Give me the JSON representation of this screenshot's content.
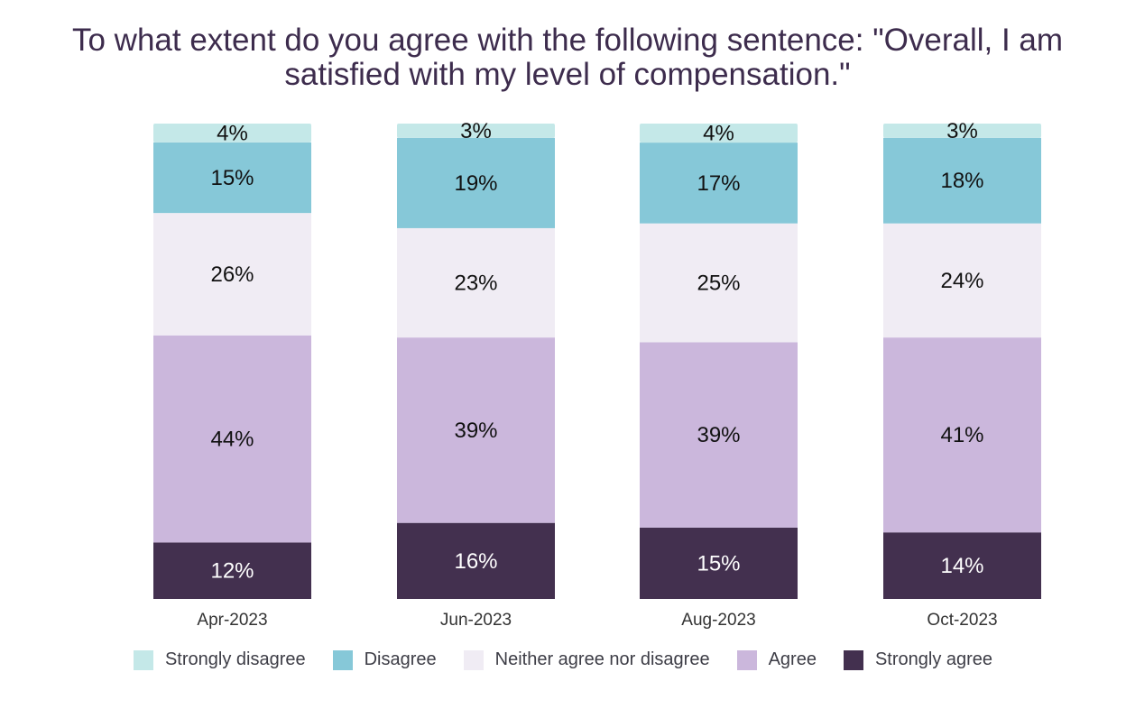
{
  "chart_data": {
    "type": "bar",
    "stacked": true,
    "title": "To what extent do you agree with the following sentence: \"Overall, I am satisfied with my level of compensation.\"",
    "categories": [
      "Apr-2023",
      "Jun-2023",
      "Aug-2023",
      "Oct-2023"
    ],
    "series": [
      {
        "name": "Strongly agree",
        "color": "#43304f",
        "values": [
          12,
          16,
          15,
          14
        ]
      },
      {
        "name": "Agree",
        "color": "#cbb7dc",
        "values": [
          44,
          39,
          39,
          41
        ]
      },
      {
        "name": "Neither agree nor disagree",
        "color": "#f0ecf4",
        "values": [
          26,
          23,
          25,
          24
        ]
      },
      {
        "name": "Disagree",
        "color": "#86c8d8",
        "values": [
          15,
          19,
          17,
          18
        ]
      },
      {
        "name": "Strongly disagree",
        "color": "#c4e8e8",
        "values": [
          4,
          3,
          4,
          3
        ]
      }
    ],
    "value_suffix": "%",
    "legend_position": "bottom",
    "grid": false
  }
}
